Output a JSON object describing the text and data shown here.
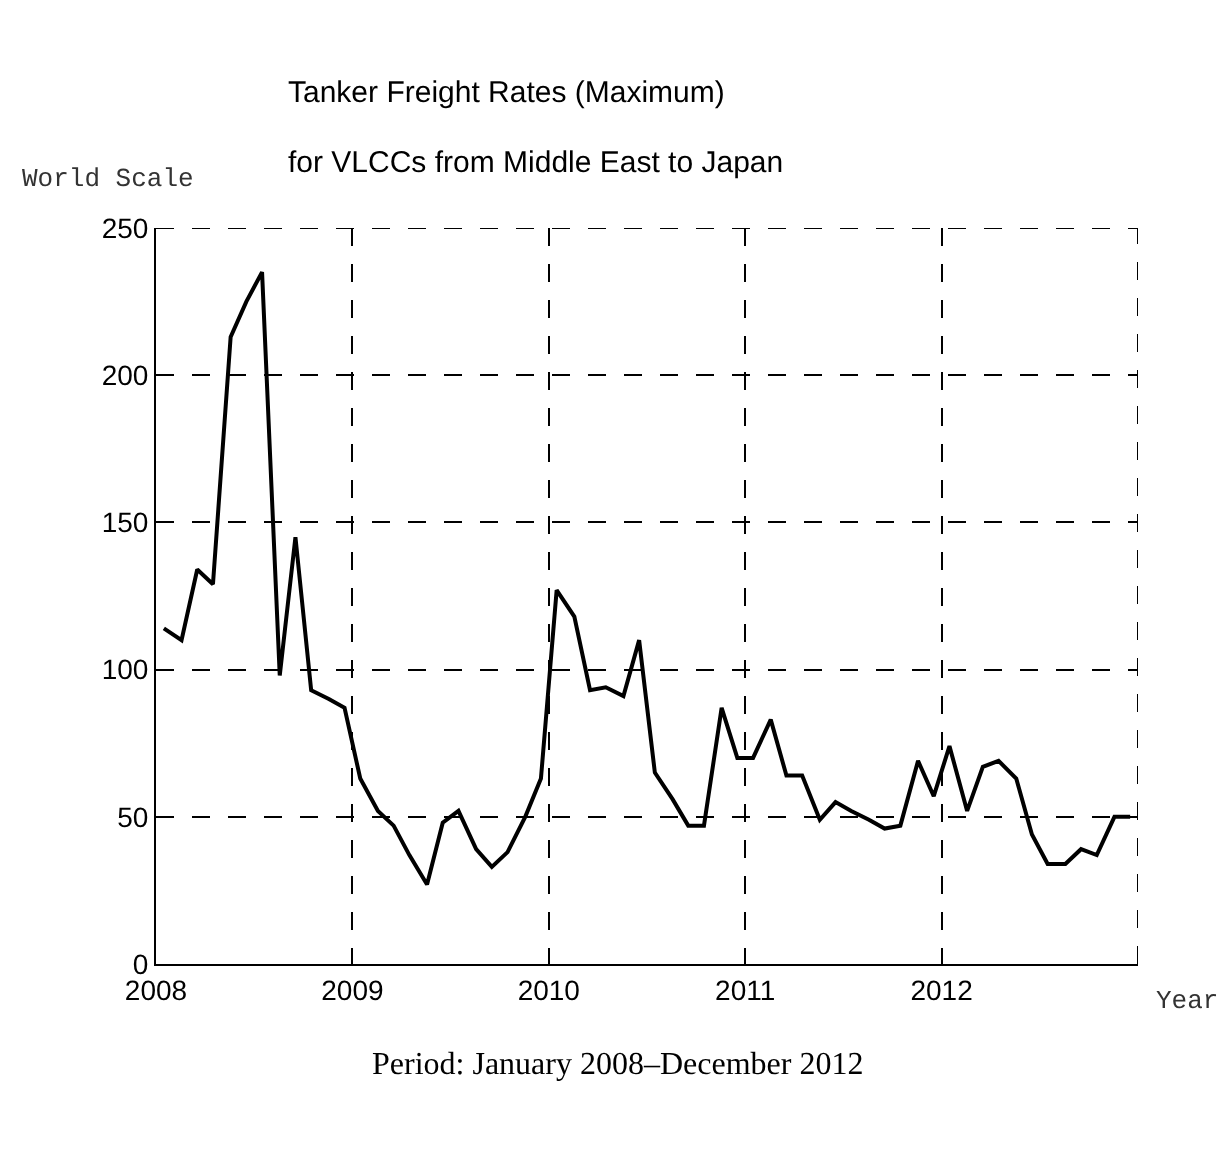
{
  "chart_data": {
    "type": "line",
    "title": "Tanker Freight Rates (Maximum)",
    "subtitle": "for VLCCs from Middle East to Japan",
    "ylabel": "World Scale",
    "xlabel": "Year",
    "annotations": [
      "Period: January 2008–December 2012"
    ],
    "x": [
      2008.04,
      2008.13,
      2008.21,
      2008.29,
      2008.38,
      2008.46,
      2008.54,
      2008.63,
      2008.71,
      2008.79,
      2008.88,
      2008.96,
      2009.04,
      2009.13,
      2009.21,
      2009.29,
      2009.38,
      2009.46,
      2009.54,
      2009.63,
      2009.71,
      2009.79,
      2009.88,
      2009.96,
      2010.04,
      2010.13,
      2010.21,
      2010.29,
      2010.38,
      2010.46,
      2010.54,
      2010.63,
      2010.71,
      2010.79,
      2010.88,
      2010.96,
      2011.04,
      2011.13,
      2011.21,
      2011.29,
      2011.38,
      2011.46,
      2011.54,
      2011.63,
      2011.71,
      2011.79,
      2011.88,
      2011.96,
      2012.04,
      2012.13,
      2012.21,
      2012.29,
      2012.38,
      2012.46,
      2012.54,
      2012.63,
      2012.71,
      2012.79,
      2012.88,
      2012.96
    ],
    "series": [
      {
        "color": "#000000",
        "values": [
          114,
          110,
          134,
          129,
          213,
          225,
          235,
          98,
          145,
          93,
          90,
          87,
          63,
          52,
          47,
          37,
          27,
          48,
          52,
          39,
          33,
          38,
          50,
          63,
          127,
          118,
          93,
          94,
          91,
          110,
          65,
          56,
          47,
          47,
          87,
          70,
          70,
          83,
          64,
          64,
          49,
          55,
          52,
          49,
          46,
          47,
          69,
          57,
          74,
          52,
          67,
          69,
          63,
          44,
          34,
          34,
          39,
          37,
          50,
          50
        ]
      }
    ],
    "xlim": [
      2008,
      2013
    ],
    "xticks": [
      2008,
      2009,
      2010,
      2011,
      2012,
      {
        "value": 2013,
        "label": null
      }
    ],
    "ylim": [
      0,
      250
    ],
    "yticks": [
      0,
      50,
      100,
      150,
      200,
      250
    ],
    "grid": true,
    "marker": "none",
    "line_style": "solid",
    "legend": false
  }
}
